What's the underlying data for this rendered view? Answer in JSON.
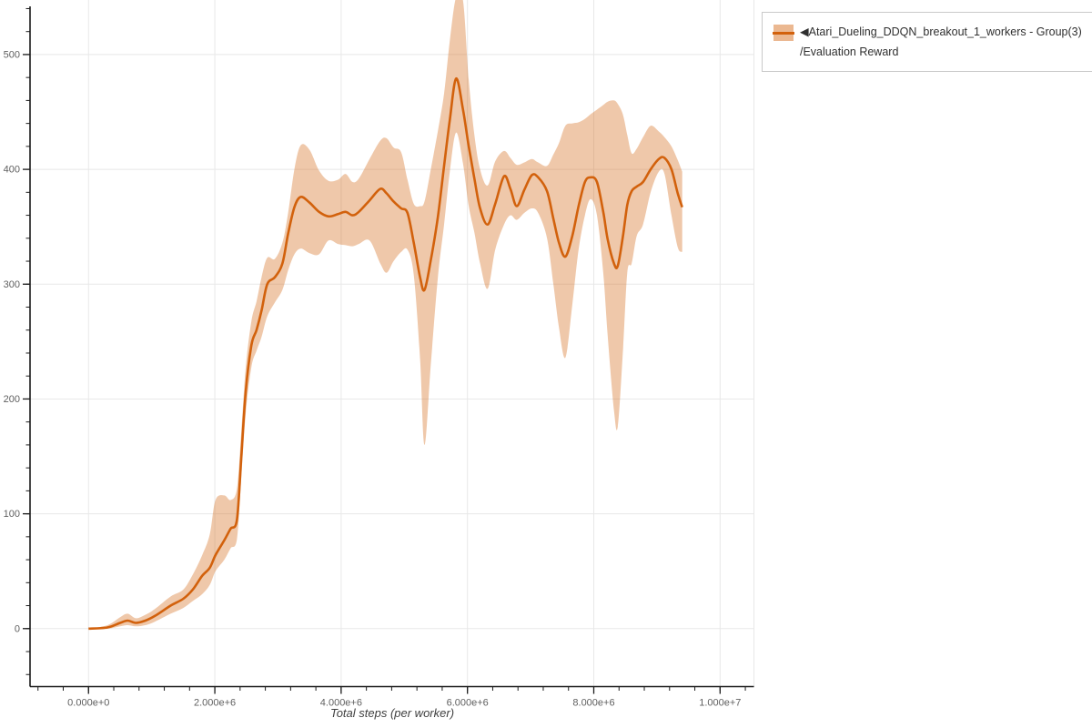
{
  "legend": {
    "collapse_arrow": "◀",
    "series_name": "Atari_Dueling_DDQN_breakout_1_workers - Group(3)",
    "metric_name": "/Evaluation Reward"
  },
  "colors": {
    "line": "#d2610c",
    "band": "#d2610c",
    "band_opacity": 0.35,
    "grid": "#e8e8e8",
    "spine": "#1a1a1a",
    "tick_label": "#606060"
  },
  "chart_data": {
    "type": "line",
    "title": "",
    "xlabel": "Total steps (per worker)",
    "ylabel": "",
    "grid": true,
    "legend_position": "top-right",
    "xlim": [
      -926000,
      10536000
    ],
    "ylim": [
      -50.5,
      547.5
    ],
    "x_ticks": {
      "values": [
        0,
        2000000,
        4000000,
        6000000,
        8000000,
        10000000
      ],
      "labels": [
        "0.000e+0",
        "2.000e+6",
        "4.000e+6",
        "6.000e+6",
        "8.000e+6",
        "1.000e+7"
      ],
      "minor_step": 400000
    },
    "y_ticks": {
      "values": [
        0,
        100,
        200,
        300,
        400,
        500
      ],
      "labels": [
        "0",
        "100",
        "200",
        "300",
        "400",
        "500"
      ],
      "minor_step": 20
    },
    "series": [
      {
        "name": "Atari_Dueling_DDQN_breakout_1_workers - Group(3)/Evaluation Reward",
        "color": "#d2610c",
        "band_color": "#d2610c",
        "band_opacity": 0.35,
        "point_format": [
          "x_steps",
          "mean",
          "band_low",
          "band_high"
        ],
        "points": [
          [
            0,
            0,
            0,
            0
          ],
          [
            300000,
            1,
            0,
            3
          ],
          [
            500000,
            5,
            2,
            10
          ],
          [
            620000,
            7,
            3,
            13
          ],
          [
            750000,
            5,
            2,
            9
          ],
          [
            900000,
            7,
            3,
            12
          ],
          [
            1050000,
            11,
            6,
            17
          ],
          [
            1300000,
            20,
            13,
            28
          ],
          [
            1500000,
            26,
            18,
            34
          ],
          [
            1650000,
            34,
            24,
            47
          ],
          [
            1800000,
            46,
            30,
            64
          ],
          [
            1920000,
            53,
            38,
            82
          ],
          [
            2010000,
            64,
            50,
            112
          ],
          [
            2150000,
            77,
            60,
            116
          ],
          [
            2250000,
            87,
            70,
            112
          ],
          [
            2350000,
            95,
            78,
            122
          ],
          [
            2420000,
            150,
            132,
            172
          ],
          [
            2490000,
            207,
            188,
            228
          ],
          [
            2580000,
            247,
            228,
            268
          ],
          [
            2660000,
            260,
            242,
            285
          ],
          [
            2740000,
            277,
            254,
            306
          ],
          [
            2830000,
            300,
            272,
            323
          ],
          [
            2950000,
            306,
            284,
            322
          ],
          [
            3070000,
            318,
            295,
            336
          ],
          [
            3160000,
            344,
            312,
            362
          ],
          [
            3260000,
            367,
            326,
            400
          ],
          [
            3360000,
            376,
            331,
            421
          ],
          [
            3500000,
            371,
            327,
            417
          ],
          [
            3650000,
            363,
            326,
            399
          ],
          [
            3800000,
            359,
            338,
            390
          ],
          [
            3950000,
            361,
            335,
            391
          ],
          [
            4070000,
            363,
            334,
            396
          ],
          [
            4180000,
            360,
            333,
            389
          ],
          [
            4280000,
            363,
            335,
            392
          ],
          [
            4450000,
            373,
            338,
            409
          ],
          [
            4620000,
            383,
            318,
            425
          ],
          [
            4720000,
            379,
            310,
            427
          ],
          [
            4830000,
            372,
            320,
            419
          ],
          [
            4950000,
            366,
            328,
            415
          ],
          [
            5050000,
            362,
            330,
            391
          ],
          [
            5150000,
            336,
            308,
            370
          ],
          [
            5250000,
            306,
            235,
            368
          ],
          [
            5320000,
            295,
            160,
            372
          ],
          [
            5420000,
            321,
            230,
            400
          ],
          [
            5530000,
            358,
            305,
            433
          ],
          [
            5630000,
            403,
            352,
            466
          ],
          [
            5720000,
            443,
            398,
            512
          ],
          [
            5820000,
            479,
            432,
            550
          ],
          [
            5930000,
            452,
            405,
            547
          ],
          [
            6020000,
            420,
            368,
            478
          ],
          [
            6110000,
            392,
            345,
            430
          ],
          [
            6200000,
            366,
            318,
            400
          ],
          [
            6320000,
            352,
            296,
            386
          ],
          [
            6440000,
            370,
            330,
            407
          ],
          [
            6580000,
            394,
            352,
            416
          ],
          [
            6680000,
            383,
            360,
            410
          ],
          [
            6780000,
            368,
            356,
            404
          ],
          [
            6900000,
            382,
            362,
            406
          ],
          [
            7020000,
            395,
            366,
            409
          ],
          [
            7120000,
            393,
            362,
            406
          ],
          [
            7260000,
            381,
            340,
            403
          ],
          [
            7360000,
            357,
            300,
            413
          ],
          [
            7450000,
            336,
            262,
            423
          ],
          [
            7550000,
            324,
            236,
            438
          ],
          [
            7660000,
            342,
            282,
            440
          ],
          [
            7760000,
            368,
            330,
            441
          ],
          [
            7860000,
            389,
            360,
            444
          ],
          [
            7950000,
            393,
            374,
            448
          ],
          [
            8050000,
            389,
            360,
            452
          ],
          [
            8150000,
            363,
            310,
            456
          ],
          [
            8220000,
            339,
            255,
            459
          ],
          [
            8320000,
            318,
            190,
            460
          ],
          [
            8380000,
            316,
            176,
            457
          ],
          [
            8460000,
            341,
            240,
            448
          ],
          [
            8530000,
            369,
            310,
            430
          ],
          [
            8600000,
            381,
            318,
            414
          ],
          [
            8680000,
            385,
            342,
            418
          ],
          [
            8780000,
            389,
            352,
            428
          ],
          [
            8900000,
            400,
            380,
            438
          ],
          [
            9030000,
            409,
            398,
            433
          ],
          [
            9120000,
            410,
            396,
            428
          ],
          [
            9230000,
            400,
            360,
            420
          ],
          [
            9330000,
            379,
            332,
            408
          ],
          [
            9400000,
            367,
            328,
            398
          ]
        ]
      }
    ]
  }
}
